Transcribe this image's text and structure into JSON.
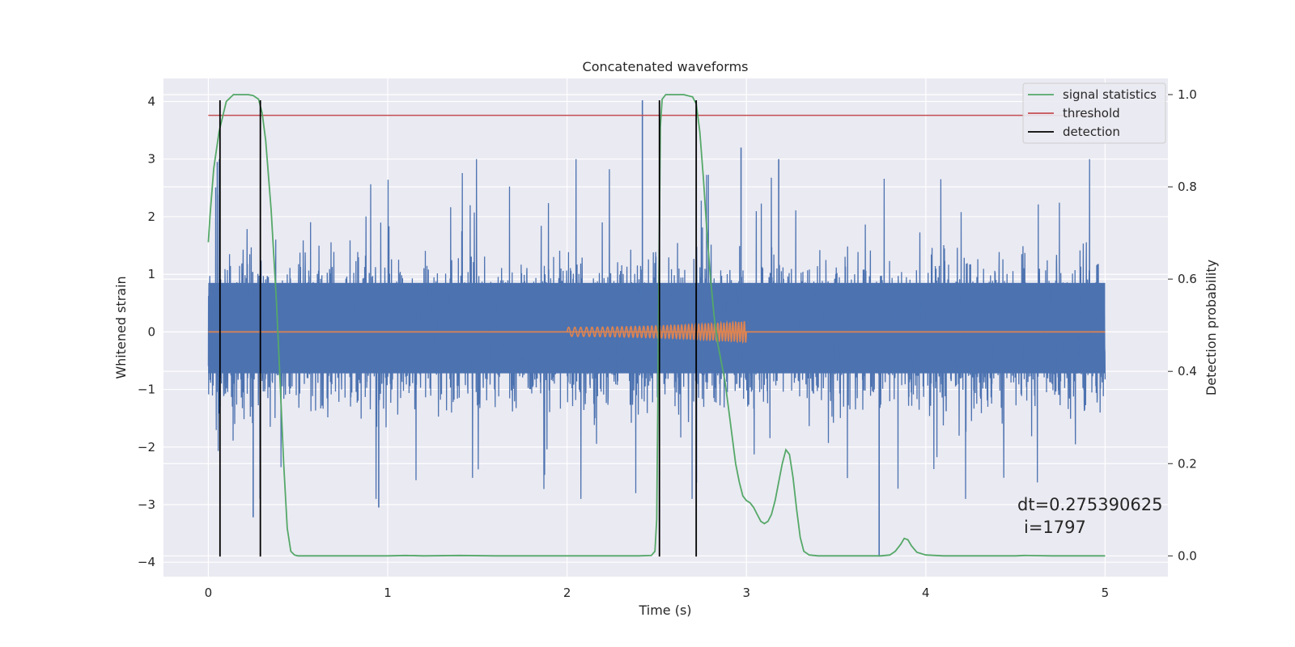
{
  "chart_data": {
    "type": "line",
    "title": "Concatenated waveforms",
    "xlabel": "Time (s)",
    "ylabel": "Whitened strain",
    "y2label": "Detection probability",
    "xlim": [
      -0.25,
      5.35
    ],
    "ylim": [
      -4.25,
      4.4
    ],
    "y2lim": [
      -0.045,
      1.035
    ],
    "x_ticks": [
      0,
      1,
      2,
      3,
      4,
      5
    ],
    "x_tick_labels": [
      "0",
      "1",
      "2",
      "3",
      "4",
      "5"
    ],
    "y_ticks": [
      -4,
      -3,
      -2,
      -1,
      0,
      1,
      2,
      3,
      4
    ],
    "y_tick_labels": [
      "−4",
      "−3",
      "−2",
      "−1",
      "0",
      "1",
      "2",
      "3",
      "4"
    ],
    "y2_ticks": [
      0.0,
      0.2,
      0.4,
      0.6,
      0.8,
      1.0
    ],
    "y2_tick_labels": [
      "0.0",
      "0.2",
      "0.4",
      "0.6",
      "0.8",
      "1.0"
    ],
    "grid": true,
    "legend_position": "top-right",
    "colors": {
      "strain": "#4c72b0",
      "waveform": "#dd8452",
      "signal_statistics": "#55a868",
      "threshold": "#c44e52",
      "detection": "#000000",
      "background": "#eaeaf2"
    },
    "series": [
      {
        "name": "signal statistics",
        "axis": "right",
        "x": [
          0.0,
          0.01,
          0.03,
          0.06,
          0.1,
          0.14,
          0.18,
          0.22,
          0.25,
          0.28,
          0.3,
          0.32,
          0.35,
          0.38,
          0.4,
          0.42,
          0.44,
          0.46,
          0.48,
          0.5,
          0.55,
          0.6,
          0.8,
          1.0,
          1.1,
          1.2,
          1.4,
          1.6,
          1.8,
          2.0,
          2.2,
          2.4,
          2.47,
          2.49,
          2.5,
          2.51,
          2.52,
          2.53,
          2.55,
          2.6,
          2.65,
          2.7,
          2.72,
          2.74,
          2.76,
          2.78,
          2.8,
          2.82,
          2.84,
          2.86,
          2.88,
          2.9,
          2.92,
          2.94,
          2.96,
          2.98,
          3.0,
          3.02,
          3.04,
          3.06,
          3.08,
          3.1,
          3.12,
          3.14,
          3.16,
          3.18,
          3.2,
          3.22,
          3.24,
          3.26,
          3.28,
          3.3,
          3.32,
          3.35,
          3.4,
          3.5,
          3.7,
          3.75,
          3.8,
          3.83,
          3.86,
          3.88,
          3.9,
          3.92,
          3.95,
          4.0,
          4.1,
          4.3,
          4.5,
          4.55,
          4.7,
          4.9,
          5.0
        ],
        "values": [
          0.68,
          0.74,
          0.84,
          0.92,
          0.985,
          1.0,
          1.0,
          1.0,
          0.998,
          0.99,
          0.96,
          0.9,
          0.75,
          0.55,
          0.38,
          0.2,
          0.06,
          0.01,
          0.002,
          0.0,
          0.0,
          0.0,
          0.0,
          0.0,
          0.001,
          0.0,
          0.001,
          0.0,
          0.0,
          0.0,
          0.0,
          0.0,
          0.001,
          0.01,
          0.08,
          0.5,
          0.93,
          0.99,
          1.0,
          1.0,
          1.0,
          0.995,
          0.98,
          0.92,
          0.82,
          0.7,
          0.6,
          0.52,
          0.46,
          0.42,
          0.38,
          0.32,
          0.26,
          0.2,
          0.16,
          0.13,
          0.12,
          0.115,
          0.105,
          0.09,
          0.075,
          0.07,
          0.075,
          0.09,
          0.12,
          0.16,
          0.2,
          0.23,
          0.22,
          0.17,
          0.1,
          0.04,
          0.01,
          0.002,
          0.0,
          0.0,
          0.0,
          0.0,
          0.002,
          0.01,
          0.025,
          0.038,
          0.035,
          0.022,
          0.008,
          0.002,
          0.0,
          0.0,
          0.0,
          0.001,
          0.0,
          0.0,
          0.0
        ]
      },
      {
        "name": "threshold",
        "axis": "right",
        "x": [
          0.0,
          5.0
        ],
        "values": [
          0.955,
          0.955
        ]
      },
      {
        "name": "detection",
        "axis": "left",
        "type": "vline",
        "x": [
          0.065,
          0.29,
          2.515,
          2.72
        ],
        "ymin": -3.9,
        "ymax": 4.02
      }
    ],
    "strain_series": {
      "axis": "left",
      "x_range": [
        0.0,
        5.0
      ],
      "core_band": [
        -0.72,
        0.85
      ],
      "typical_extremes": [
        -2.6,
        2.7
      ],
      "notable_spikes": [
        {
          "x": 2.42,
          "value": 4.02
        },
        {
          "x": 3.74,
          "value": -3.9
        },
        {
          "x": 0.25,
          "value": -3.22
        },
        {
          "x": 0.05,
          "value": 2.95
        },
        {
          "x": 2.97,
          "value": 3.2
        },
        {
          "x": 0.95,
          "value": -3.05
        },
        {
          "x": 3.18,
          "value": 3.0
        }
      ]
    },
    "waveform_series": {
      "axis": "left",
      "x": [
        0.0,
        5.0
      ],
      "values": [
        0.0,
        0.0
      ],
      "chirp_start": 2.0,
      "chirp_end": 3.0,
      "chirp_amplitude": [
        0.08,
        0.18
      ]
    },
    "annotations": [
      {
        "line1": "dt=0.275390625",
        "line2": "i=1797"
      }
    ]
  }
}
